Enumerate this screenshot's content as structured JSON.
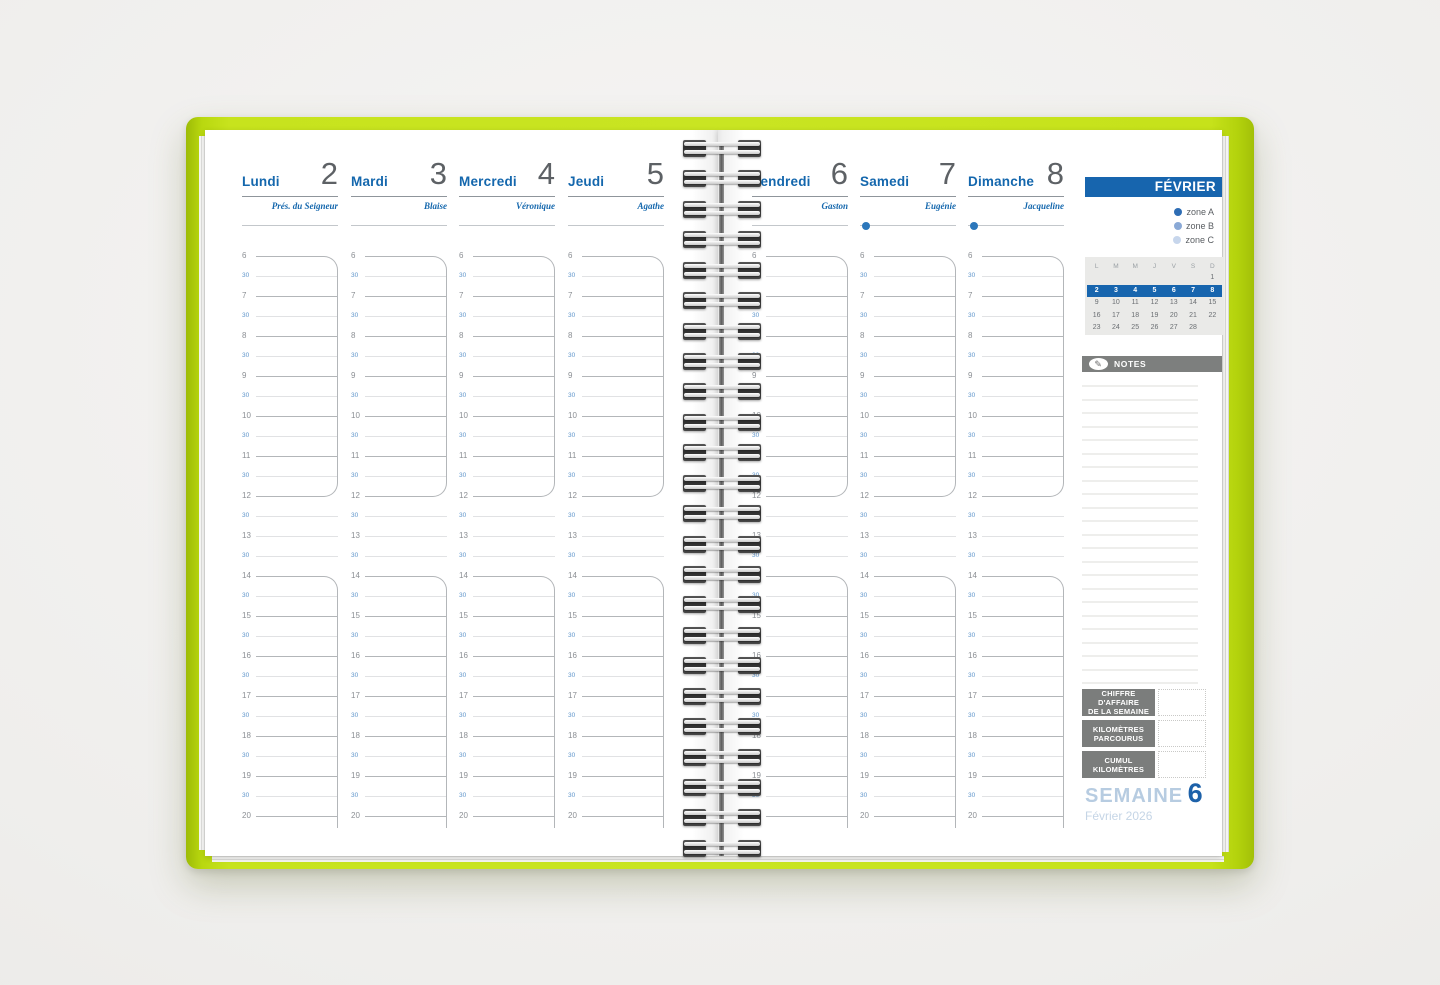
{
  "days": [
    {
      "name": "Lundi",
      "number": "2",
      "saint": "Prés. du Seigneur",
      "zone_dot": false
    },
    {
      "name": "Mardi",
      "number": "3",
      "saint": "Blaise",
      "zone_dot": false
    },
    {
      "name": "Mercredi",
      "number": "4",
      "saint": "Véronique",
      "zone_dot": false
    },
    {
      "name": "Jeudi",
      "number": "5",
      "saint": "Agathe",
      "zone_dot": false
    },
    {
      "name": "Vendredi",
      "number": "6",
      "saint": "Gaston",
      "zone_dot": false
    },
    {
      "name": "Samedi",
      "number": "7",
      "saint": "Eugénie",
      "zone_dot": true
    },
    {
      "name": "Dimanche",
      "number": "8",
      "saint": "Jacqueline",
      "zone_dot": true
    }
  ],
  "time_grid": {
    "row_labels": [
      "6",
      "30",
      "7",
      "30",
      "8",
      "30",
      "9",
      "30",
      "10",
      "30",
      "11",
      "30",
      "12",
      "30",
      "13",
      "30",
      "14",
      "30",
      "15",
      "30",
      "16",
      "30",
      "17",
      "30",
      "18",
      "30",
      "19",
      "30",
      "20"
    ]
  },
  "sidebar": {
    "month_banner": "FÉVRIER",
    "zones": [
      {
        "label": "zone A",
        "color": "#2e6db4"
      },
      {
        "label": "zone B",
        "color": "#8aa9d6"
      },
      {
        "label": "zone C",
        "color": "#c7d6ec"
      }
    ],
    "calendar": {
      "weekday_headers": [
        "L",
        "M",
        "M",
        "J",
        "V",
        "S",
        "D"
      ],
      "rows": [
        [
          "",
          "",
          "",
          "",
          "",
          "",
          "1"
        ],
        [
          "2",
          "3",
          "4",
          "5",
          "6",
          "7",
          "8"
        ],
        [
          "9",
          "10",
          "11",
          "12",
          "13",
          "14",
          "15"
        ],
        [
          "16",
          "17",
          "18",
          "19",
          "20",
          "21",
          "22"
        ],
        [
          "23",
          "24",
          "25",
          "26",
          "27",
          "28",
          ""
        ]
      ],
      "highlighted_row": 1
    },
    "notes_label": "NOTES",
    "pencil_icon": "✎",
    "stats": [
      {
        "line1": "CHIFFRE D'AFFAIRE",
        "line2": "DE LA SEMAINE"
      },
      {
        "line1": "KILOMÈTRES",
        "line2": "PARCOURUS"
      },
      {
        "line1": "CUMUL",
        "line2": "KILOMÈTRES"
      }
    ]
  },
  "footer": {
    "week_label": "SEMAINE",
    "week_number": "6",
    "month_year": "Février 2026"
  },
  "colors": {
    "cover_green": "#c7e31d",
    "accent_blue": "#1765ae",
    "day_name_blue": "#1467ad",
    "number_gray": "#5d6165",
    "banner_gray": "#7d7f7e",
    "calendar_highlight": "#1765ae",
    "half_hour_blue": "#5e95cb"
  }
}
